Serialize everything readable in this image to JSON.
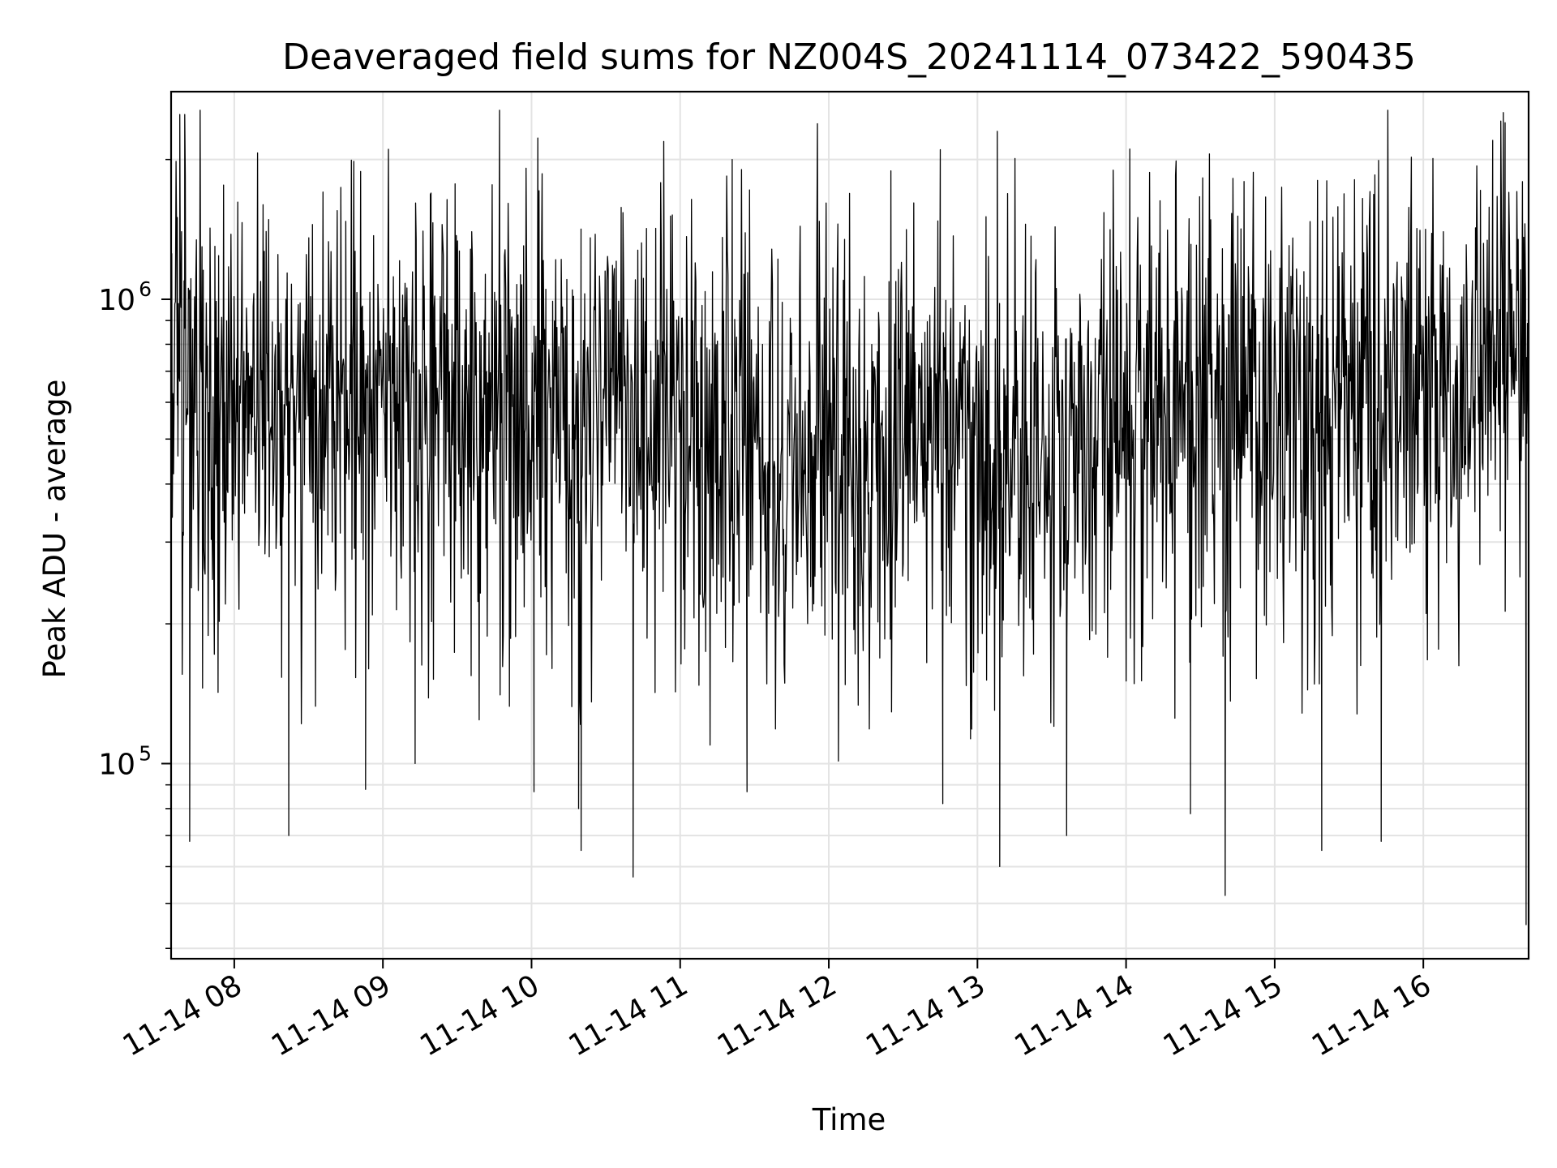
{
  "chart_data": {
    "type": "line",
    "title": "Deaveraged field sums for NZ004S_20241114_073422_590435",
    "xlabel": "Time",
    "ylabel": "Peak ADU - average",
    "yscale": "log",
    "xlim": [
      "2024-11-14T07:34:30",
      "2024-11-14T16:42:30"
    ],
    "ylim": [
      38000,
      2800000
    ],
    "grid": true,
    "x_tick_labels": [
      "11-14 08",
      "11-14 09",
      "11-14 10",
      "11-14 11",
      "11-14 12",
      "11-14 13",
      "11-14 14",
      "11-14 15",
      "11-14 16"
    ],
    "y_tick_labels": [
      {
        "base": "10",
        "exp": "5",
        "value": 100000
      },
      {
        "base": "10",
        "exp": "6",
        "value": 1000000
      }
    ],
    "series": [
      {
        "color": "#000000",
        "x_start": "2024-11-14T07:34:30",
        "x_end": "2024-11-14T16:42:30",
        "points_count": 2200,
        "typical_range": [
          150000,
          1300000
        ],
        "median_approx": 550000,
        "points": [
          {
            "x": "2024-11-14T07:34:30",
            "y": 280000
          },
          {
            "x": "2024-11-14T07:37:00",
            "y": 1500000
          },
          {
            "x": "2024-11-14T07:38:00",
            "y": 2500000
          },
          {
            "x": "2024-11-14T07:40:00",
            "y": 2500000
          },
          {
            "x": "2024-11-14T07:42:00",
            "y": 68000
          },
          {
            "x": "2024-11-14T08:22:00",
            "y": 70000
          },
          {
            "x": "2024-11-14T08:53:00",
            "y": 88000
          },
          {
            "x": "2024-11-14T09:13:00",
            "y": 100000
          },
          {
            "x": "2024-11-14T10:01:00",
            "y": 87000
          },
          {
            "x": "2024-11-14T10:19:00",
            "y": 80000
          },
          {
            "x": "2024-11-14T10:20:00",
            "y": 65000
          },
          {
            "x": "2024-11-14T10:41:00",
            "y": 57000
          },
          {
            "x": "2024-11-14T11:21:00",
            "y": 2000000
          },
          {
            "x": "2024-11-14T11:27:00",
            "y": 87000
          },
          {
            "x": "2024-11-14T12:45:00",
            "y": 2100000
          },
          {
            "x": "2024-11-14T12:46:00",
            "y": 82000
          },
          {
            "x": "2024-11-14T13:08:00",
            "y": 2300000
          },
          {
            "x": "2024-11-14T13:09:00",
            "y": 60000
          },
          {
            "x": "2024-11-14T13:36:00",
            "y": 70000
          },
          {
            "x": "2024-11-14T14:26:00",
            "y": 78000
          },
          {
            "x": "2024-11-14T14:40:00",
            "y": 52000
          },
          {
            "x": "2024-11-14T15:19:00",
            "y": 65000
          },
          {
            "x": "2024-11-14T15:43:00",
            "y": 68000
          },
          {
            "x": "2024-11-14T16:28:00",
            "y": 2200000
          },
          {
            "x": "2024-11-14T16:33:00",
            "y": 2400000
          },
          {
            "x": "2024-11-14T16:41:30",
            "y": 45000
          },
          {
            "x": "2024-11-14T16:42:30",
            "y": 180000
          }
        ]
      }
    ]
  }
}
